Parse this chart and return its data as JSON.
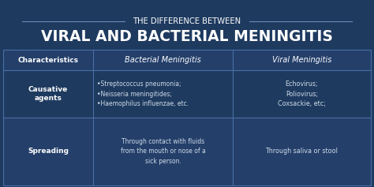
{
  "bg_color": "#1e3a5f",
  "title_line1": "THE DIFFERENCE BETWEEN",
  "title_line2": "VIRAL AND BACTERIAL MENINGITIS",
  "header_row": [
    "Characteristics",
    "Bacterial Meningitis",
    "Viral Meningitis"
  ],
  "row1_label": "Causative\nagents",
  "row1_col1": "•Streptococcus pneumonia;\n•Neisseria meningitides;\n•Haemophilus influenzae, etc.",
  "row1_col2": "Echovirus;\nPoliovirus;\nCoxsackie, etc;",
  "row2_label": "Spreading",
  "row2_col1": "Through contact with fluids\nfrom the mouth or nose of a\nsick person.",
  "row2_col2": "Through saliva or stool",
  "col_divider_color": "#4a6fa5",
  "text_color_white": "#ffffff",
  "text_color_light": "#d0dce8",
  "cell_bg_dark": "#1e3a5f",
  "cell_bg_lighter": "#243f6a",
  "line_color": "#6a8ab5"
}
